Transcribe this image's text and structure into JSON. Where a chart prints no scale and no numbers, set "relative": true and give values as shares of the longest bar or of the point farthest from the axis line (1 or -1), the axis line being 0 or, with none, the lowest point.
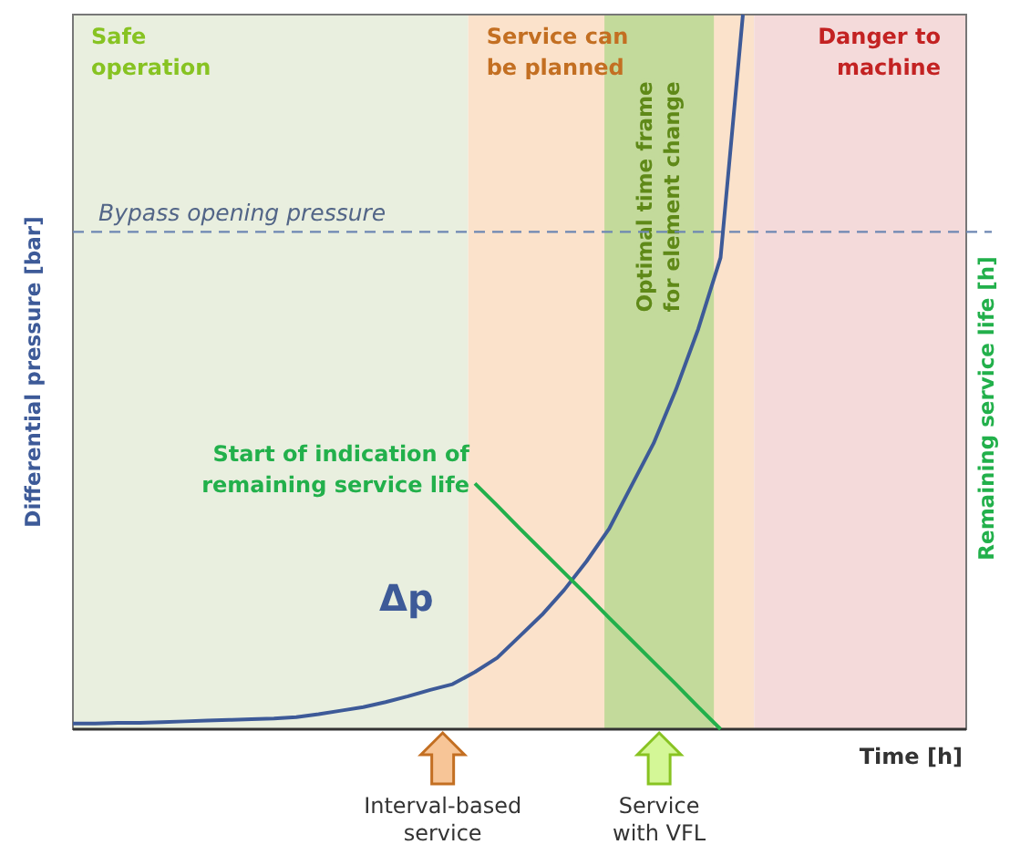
{
  "chart_data": {
    "type": "line",
    "relative": true,
    "categories": [
      null,
      null,
      null,
      null,
      null,
      null,
      null,
      null,
      null,
      null,
      null,
      null,
      null,
      null,
      null,
      null,
      null,
      null,
      null,
      null,
      null,
      null,
      null,
      null,
      null,
      null,
      null,
      null,
      null,
      null,
      null,
      null,
      null,
      null,
      null,
      null,
      null,
      null,
      null,
      null,
      null
    ],
    "xlabel": "Time [h]",
    "ylabel": "Differential pressure [bar]",
    "y2label": "Remaining service life [h]",
    "series": [
      {
        "name": "Δp",
        "color": "#3d5a98",
        "values": [
          0.008,
          0.008,
          0.009,
          0.009,
          0.01,
          0.011,
          0.012,
          0.013,
          0.014,
          0.015,
          0.017,
          0.021,
          0.026,
          0.031,
          0.038,
          0.046,
          0.055,
          0.063,
          0.08,
          0.1,
          0.13,
          0.16,
          0.195,
          0.235,
          0.28,
          0.34,
          0.4,
          0.475,
          0.56,
          0.66,
          1.0,
          null,
          null,
          null,
          null,
          null,
          null,
          null,
          null,
          null,
          null
        ]
      },
      {
        "color": "#22b04b",
        "values": [
          null,
          null,
          null,
          null,
          null,
          null,
          null,
          null,
          null,
          null,
          null,
          null,
          null,
          null,
          null,
          null,
          null,
          null,
          0.344,
          0.313,
          0.281,
          0.25,
          0.219,
          0.188,
          0.156,
          0.125,
          0.094,
          0.063,
          0.031,
          0,
          null,
          null,
          null,
          null,
          null,
          null,
          null,
          null,
          null,
          null,
          null
        ]
      }
    ],
    "ref_lines": [
      {
        "axis": "y",
        "value": 0.696,
        "label": "Bypass opening pressure",
        "color": "#6d87b3",
        "line_style": "dashed"
      }
    ],
    "annotations": [
      "Safe operation",
      "Service can be planned",
      "Danger to machine",
      "Optimal time frame for element change",
      "Start of indication of remaining service life",
      "Interval-based service",
      "Service with VFL"
    ]
  }
}
